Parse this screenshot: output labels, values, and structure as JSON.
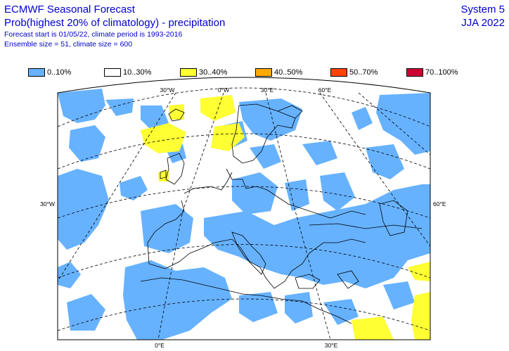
{
  "header": {
    "title": "ECMWF Seasonal Forecast",
    "subtitle": "Prob(highest 20% of climatology) - precipitation",
    "forecast_start": "Forecast start is 01/05/22, climate period is 1993-2016",
    "ensemble": "Ensemble size = 51, climate size = 600",
    "system": "System 5",
    "season": "JJA 2022"
  },
  "legend": [
    {
      "label": "0..10%",
      "color": "#66b2ff"
    },
    {
      "label": "10..30%",
      "color": "#ffffff"
    },
    {
      "label": "30..40%",
      "color": "#ffff33"
    },
    {
      "label": "40..50%",
      "color": "#ffaa00"
    },
    {
      "label": "50..70%",
      "color": "#ff4400"
    },
    {
      "label": "70..100%",
      "color": "#cc0033"
    }
  ],
  "map": {
    "top_lon_labels": [
      "30°W",
      "0°W",
      "30°E",
      "60°E"
    ],
    "bottom_lon_labels": [
      "0°E",
      "30°E"
    ],
    "left_lat_label": "30°W",
    "right_lat_label": "60°E"
  }
}
